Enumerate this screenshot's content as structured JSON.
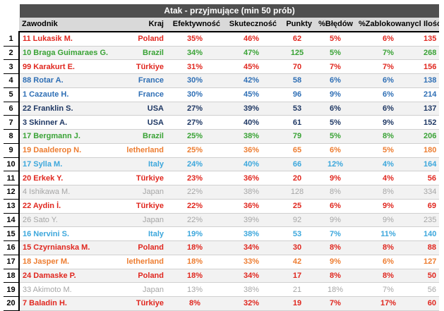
{
  "title": "Atak - przyjmujące (min 50 prób)",
  "headers": [
    "Zawodnik",
    "Kraj",
    "Efektywność",
    "Skuteczność",
    "Punkty",
    "%Błędów",
    "%Zablokowanych",
    "Ilość"
  ],
  "colors": {
    "red": "#e0271f",
    "green": "#3aa336",
    "blue": "#2f6fb5",
    "navy": "#1f3864",
    "lightblue": "#3ca7dc",
    "orange": "#ed7d31",
    "grey": "#a6a6a6",
    "header_bg": "#4f4f4f"
  },
  "rows": [
    {
      "idx": "1",
      "player": "11 Lukasik M.",
      "country": "Poland",
      "eff": "35%",
      "skut": "46%",
      "pkt": "62",
      "err": "5%",
      "blk": "6%",
      "ilosc": "135",
      "pc": "red",
      "cc": "red",
      "ec": "red",
      "sc": "red",
      "kc": "red",
      "rc": "red",
      "bc": "red",
      "ic": "red"
    },
    {
      "idx": "2",
      "player": "10 Braga Guimaraes G.",
      "country": "Brazil",
      "eff": "34%",
      "skut": "47%",
      "pkt": "125",
      "err": "5%",
      "blk": "7%",
      "ilosc": "268",
      "pc": "green",
      "cc": "green",
      "ec": "green",
      "sc": "green",
      "kc": "green",
      "rc": "green",
      "bc": "green",
      "ic": "green"
    },
    {
      "idx": "3",
      "player": "99 Karakurt E.",
      "country": "Türkiye",
      "eff": "31%",
      "skut": "45%",
      "pkt": "70",
      "err": "7%",
      "blk": "7%",
      "ilosc": "156",
      "pc": "red",
      "cc": "red",
      "ec": "red",
      "sc": "red",
      "kc": "red",
      "rc": "red",
      "bc": "red",
      "ic": "red"
    },
    {
      "idx": "4",
      "player": "88 Rotar A.",
      "country": "France",
      "eff": "30%",
      "skut": "42%",
      "pkt": "58",
      "err": "6%",
      "blk": "6%",
      "ilosc": "138",
      "pc": "blue",
      "cc": "blue",
      "ec": "blue",
      "sc": "blue",
      "kc": "blue",
      "rc": "blue",
      "bc": "blue",
      "ic": "blue"
    },
    {
      "idx": "5",
      "player": "1 Cazaute H.",
      "country": "France",
      "eff": "30%",
      "skut": "45%",
      "pkt": "96",
      "err": "9%",
      "blk": "6%",
      "ilosc": "214",
      "pc": "blue",
      "cc": "blue",
      "ec": "blue",
      "sc": "blue",
      "kc": "blue",
      "rc": "blue",
      "bc": "blue",
      "ic": "blue"
    },
    {
      "idx": "6",
      "player": "22 Franklin S.",
      "country": "USA",
      "eff": "27%",
      "skut": "39%",
      "pkt": "53",
      "err": "6%",
      "blk": "6%",
      "ilosc": "137",
      "pc": "navy",
      "cc": "navy",
      "ec": "navy",
      "sc": "navy",
      "kc": "navy",
      "rc": "navy",
      "bc": "navy",
      "ic": "navy"
    },
    {
      "idx": "7",
      "player": "3 Skinner A.",
      "country": "USA",
      "eff": "27%",
      "skut": "40%",
      "pkt": "61",
      "err": "5%",
      "blk": "9%",
      "ilosc": "152",
      "pc": "navy",
      "cc": "navy",
      "ec": "navy",
      "sc": "navy",
      "kc": "navy",
      "rc": "navy",
      "bc": "navy",
      "ic": "navy"
    },
    {
      "idx": "8",
      "player": "17 Bergmann J.",
      "country": "Brazil",
      "eff": "25%",
      "skut": "38%",
      "pkt": "79",
      "err": "5%",
      "blk": "8%",
      "ilosc": "206",
      "pc": "green",
      "cc": "green",
      "ec": "green",
      "sc": "green",
      "kc": "green",
      "rc": "green",
      "bc": "green",
      "ic": "green"
    },
    {
      "idx": "9",
      "player": "19 Daalderop N.",
      "country": "letherland",
      "eff": "25%",
      "skut": "36%",
      "pkt": "65",
      "err": "6%",
      "blk": "5%",
      "ilosc": "180",
      "pc": "orange",
      "cc": "orange",
      "ec": "orange",
      "sc": "orange",
      "kc": "orange",
      "rc": "orange",
      "bc": "orange",
      "ic": "orange"
    },
    {
      "idx": "10",
      "player": "17 Sylla M.",
      "country": "Italy",
      "eff": "24%",
      "skut": "40%",
      "pkt": "66",
      "err": "12%",
      "blk": "4%",
      "ilosc": "164",
      "pc": "lightblue",
      "cc": "lightblue",
      "ec": "lightblue",
      "sc": "lightblue",
      "kc": "lightblue",
      "rc": "lightblue",
      "bc": "lightblue",
      "ic": "lightblue"
    },
    {
      "idx": "11",
      "player": "20 Erkek Y.",
      "country": "Türkiye",
      "eff": "23%",
      "skut": "36%",
      "pkt": "20",
      "err": "9%",
      "blk": "4%",
      "ilosc": "56",
      "pc": "red",
      "cc": "red",
      "ec": "red",
      "sc": "red",
      "kc": "red",
      "rc": "red",
      "bc": "red",
      "ic": "red"
    },
    {
      "idx": "12",
      "player": "4 Ishikawa M.",
      "country": "Japan",
      "eff": "22%",
      "skut": "38%",
      "pkt": "128",
      "err": "8%",
      "blk": "8%",
      "ilosc": "334",
      "pc": "grey",
      "cc": "grey",
      "ec": "grey",
      "sc": "grey",
      "kc": "grey",
      "rc": "grey",
      "bc": "grey",
      "ic": "grey"
    },
    {
      "idx": "13",
      "player": "22 Aydin İ.",
      "country": "Türkiye",
      "eff": "22%",
      "skut": "36%",
      "pkt": "25",
      "err": "6%",
      "blk": "9%",
      "ilosc": "69",
      "pc": "red",
      "cc": "red",
      "ec": "red",
      "sc": "red",
      "kc": "red",
      "rc": "red",
      "bc": "red",
      "ic": "red"
    },
    {
      "idx": "14",
      "player": "26 Sato Y.",
      "country": "Japan",
      "eff": "22%",
      "skut": "39%",
      "pkt": "92",
      "err": "9%",
      "blk": "9%",
      "ilosc": "235",
      "pc": "grey",
      "cc": "grey",
      "ec": "grey",
      "sc": "grey",
      "kc": "grey",
      "rc": "grey",
      "bc": "grey",
      "ic": "grey"
    },
    {
      "idx": "15",
      "player": "16 Nervini S.",
      "country": "Italy",
      "eff": "19%",
      "skut": "38%",
      "pkt": "53",
      "err": "7%",
      "blk": "11%",
      "ilosc": "140",
      "pc": "lightblue",
      "cc": "lightblue",
      "ec": "lightblue",
      "sc": "lightblue",
      "kc": "lightblue",
      "rc": "lightblue",
      "bc": "lightblue",
      "ic": "lightblue"
    },
    {
      "idx": "16",
      "player": "15 Czyrnianska M.",
      "country": "Poland",
      "eff": "18%",
      "skut": "34%",
      "pkt": "30",
      "err": "8%",
      "blk": "8%",
      "ilosc": "88",
      "pc": "red",
      "cc": "red",
      "ec": "red",
      "sc": "red",
      "kc": "red",
      "rc": "red",
      "bc": "red",
      "ic": "red"
    },
    {
      "idx": "17",
      "player": "18 Jasper M.",
      "country": "letherland",
      "eff": "18%",
      "skut": "33%",
      "pkt": "42",
      "err": "9%",
      "blk": "6%",
      "ilosc": "127",
      "pc": "orange",
      "cc": "orange",
      "ec": "orange",
      "sc": "orange",
      "kc": "orange",
      "rc": "orange",
      "bc": "orange",
      "ic": "orange"
    },
    {
      "idx": "18",
      "player": "24 Damaske P.",
      "country": "Poland",
      "eff": "18%",
      "skut": "34%",
      "pkt": "17",
      "err": "8%",
      "blk": "8%",
      "ilosc": "50",
      "pc": "red",
      "cc": "red",
      "ec": "red",
      "sc": "red",
      "kc": "red",
      "rc": "red",
      "bc": "red",
      "ic": "red"
    },
    {
      "idx": "19",
      "player": "33 Akimoto M.",
      "country": "Japan",
      "eff": "13%",
      "skut": "38%",
      "pkt": "21",
      "err": "18%",
      "blk": "7%",
      "ilosc": "56",
      "pc": "grey",
      "cc": "grey",
      "ec": "grey",
      "sc": "grey",
      "kc": "grey",
      "rc": "grey",
      "bc": "grey",
      "ic": "grey"
    },
    {
      "idx": "20",
      "player": "7 Baladin H.",
      "country": "Türkiye",
      "eff": "8%",
      "skut": "32%",
      "pkt": "19",
      "err": "7%",
      "blk": "17%",
      "ilosc": "60",
      "pc": "red",
      "cc": "red",
      "ec": "red",
      "sc": "red",
      "kc": "red",
      "rc": "red",
      "bc": "red",
      "ic": "red"
    }
  ]
}
